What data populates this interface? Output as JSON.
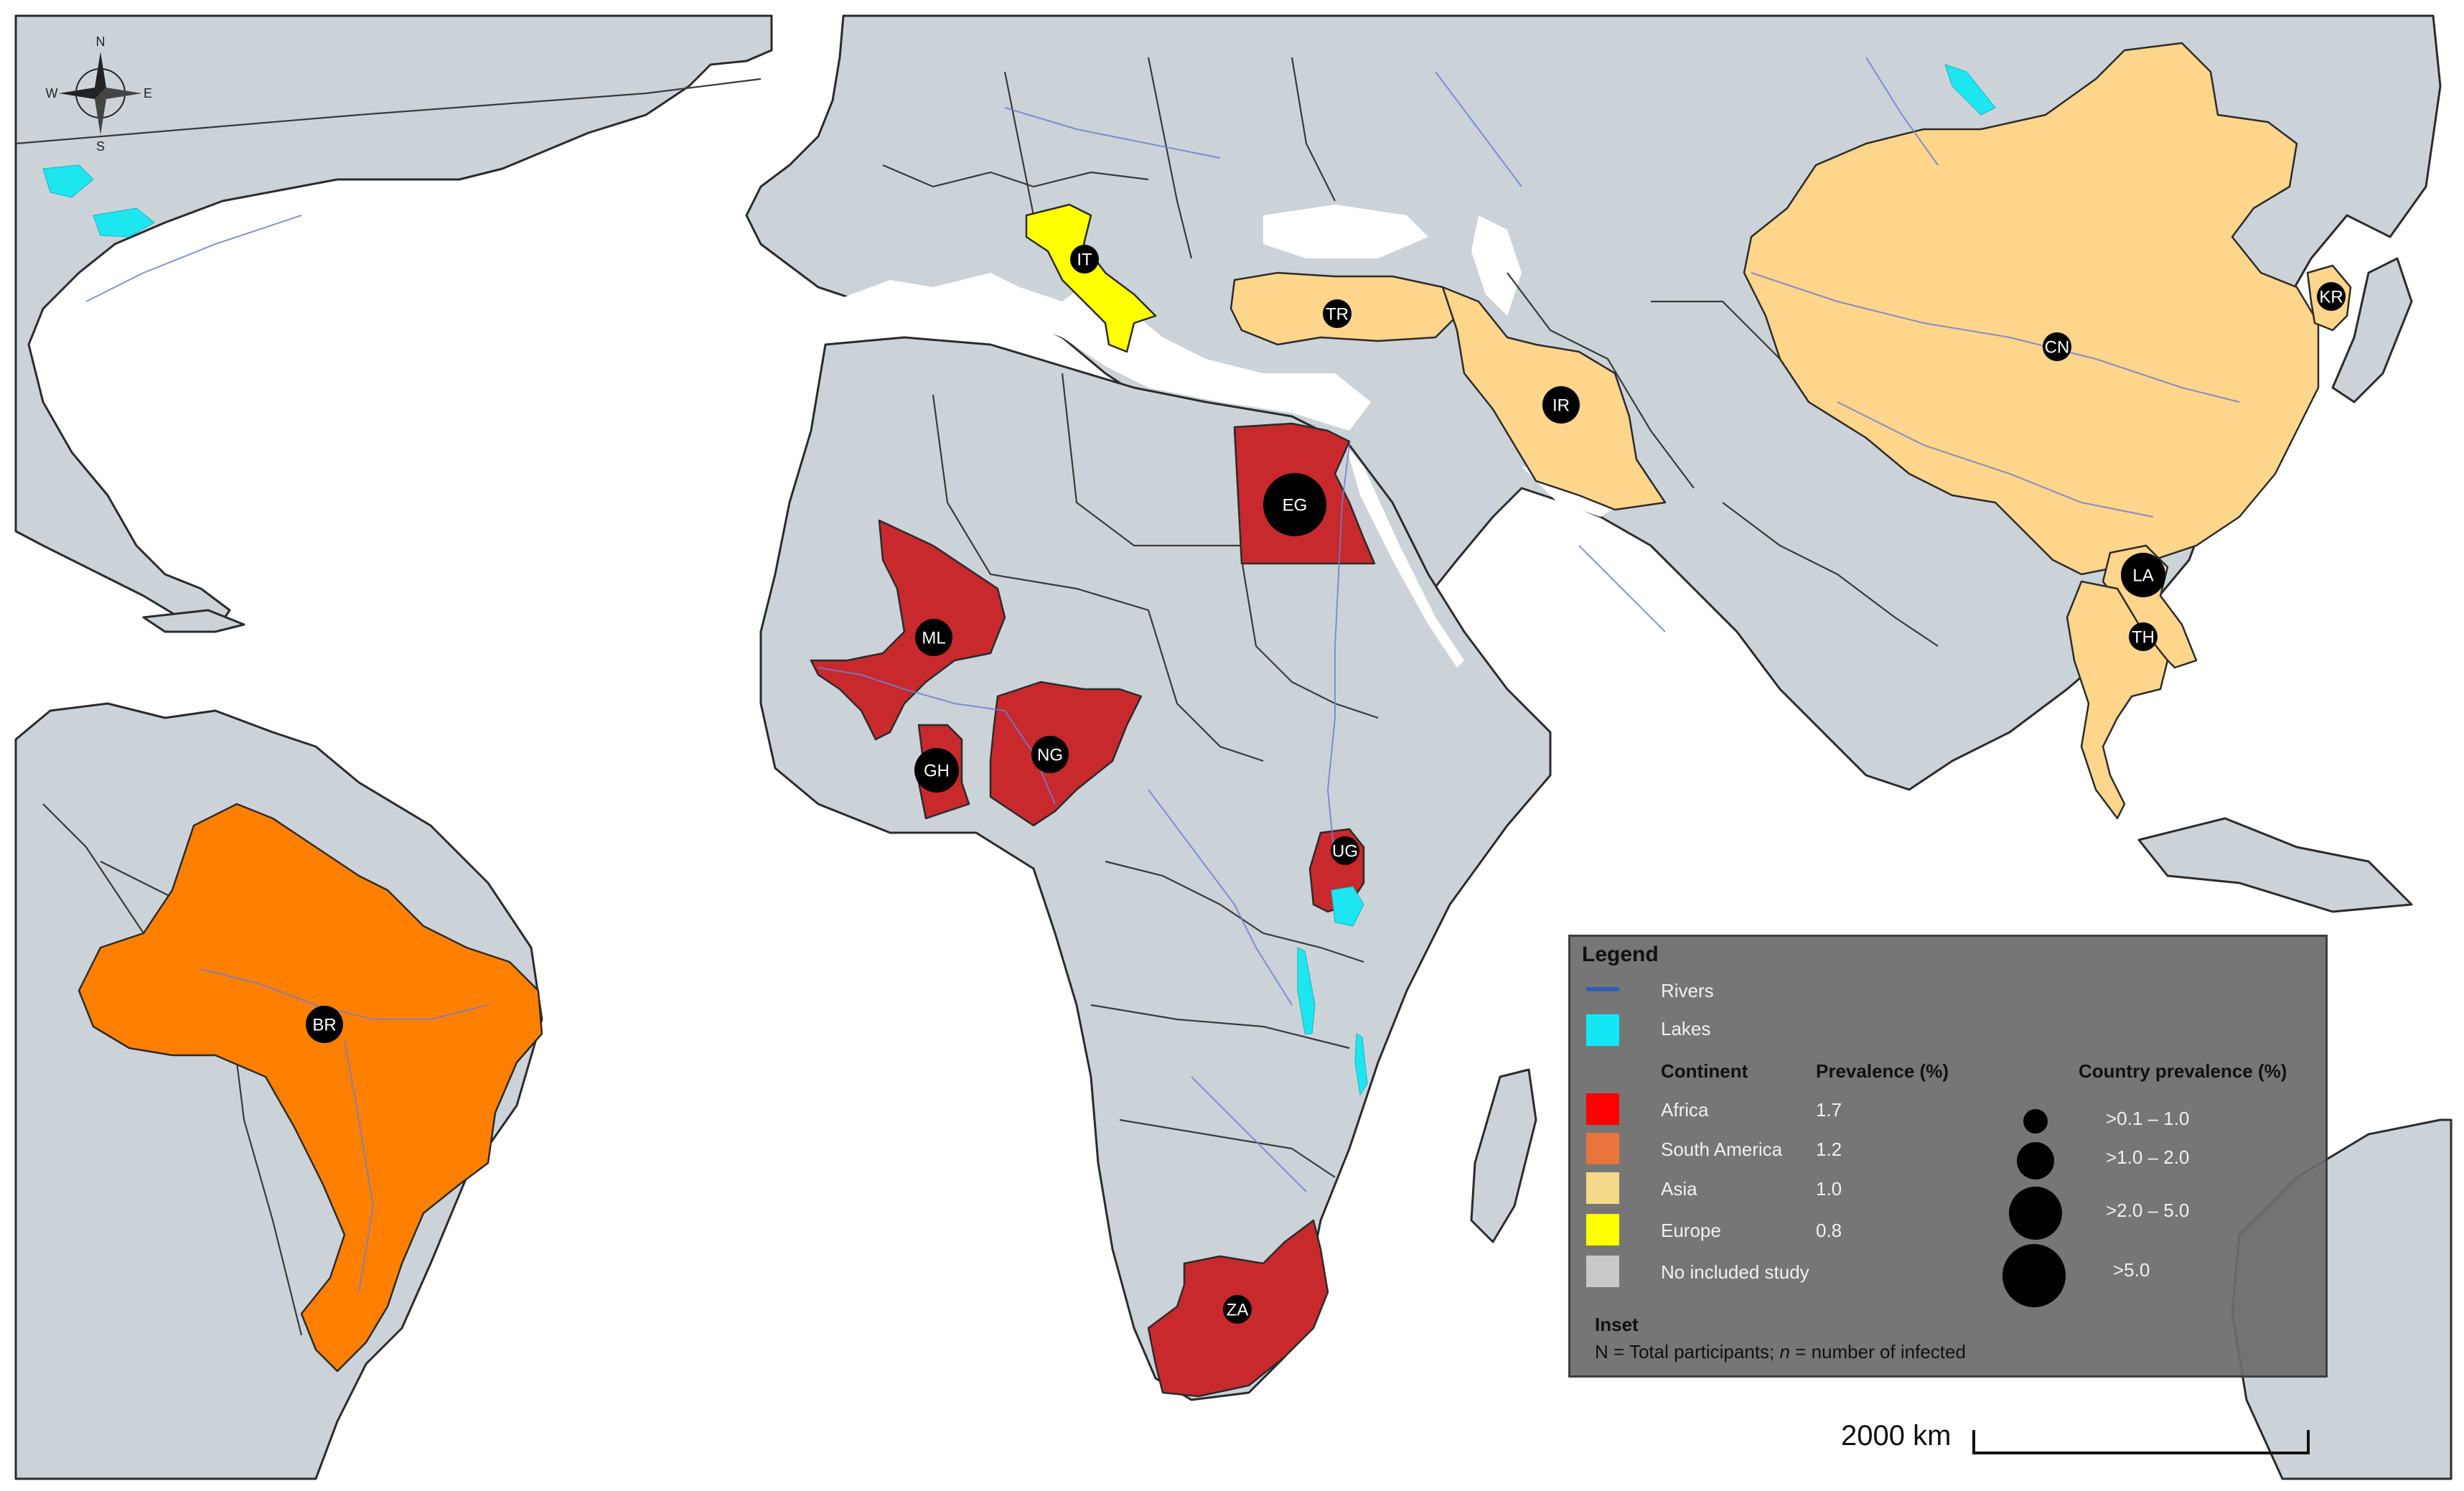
{
  "legend": {
    "title": "Legend",
    "rivers": "Rivers",
    "lakes": "Lakes",
    "col_continent": "Continent",
    "col_prevalence": "Prevalence (%)",
    "col_country": "Country prevalence (%)",
    "continents": [
      {
        "name": "Africa",
        "prevalence": "1.7",
        "color": "#ff0000"
      },
      {
        "name": "South America",
        "prevalence": "1.2",
        "color": "#e8743b"
      },
      {
        "name": "Asia",
        "prevalence": "1.0",
        "color": "#f4d98a"
      },
      {
        "name": "Europe",
        "prevalence": "0.8",
        "color": "#ffff00"
      },
      {
        "name": "No included study",
        "prevalence": "",
        "color": "#c8c8c8"
      }
    ],
    "size_classes": [
      ">0.1 – 1.0",
      ">1.0 – 2.0",
      ">2.0 – 5.0",
      ">5.0"
    ],
    "inset_title": "Inset",
    "inset_note_before": "N = Total participants; ",
    "inset_note_n": "n",
    "inset_note_after": " = number of infected"
  },
  "scale": {
    "label": "2000 km"
  },
  "compass": {
    "n": "N",
    "s": "S",
    "e": "E",
    "w": "W"
  },
  "countries": [
    {
      "code": "BR",
      "continent": "South America",
      "color": "#ff8000"
    },
    {
      "code": "IT",
      "continent": "Europe",
      "color": "#ffff00"
    },
    {
      "code": "TR",
      "continent": "Asia",
      "color": "#fdd58b"
    },
    {
      "code": "IR",
      "continent": "Asia",
      "color": "#fdd58b"
    },
    {
      "code": "CN",
      "continent": "Asia",
      "color": "#fdd58b"
    },
    {
      "code": "KR",
      "continent": "Asia",
      "color": "#fdd58b"
    },
    {
      "code": "LA",
      "continent": "Asia",
      "color": "#fdd58b"
    },
    {
      "code": "TH",
      "continent": "Asia",
      "color": "#fdd58b"
    },
    {
      "code": "EG",
      "continent": "Africa",
      "color": "#c8292c"
    },
    {
      "code": "ML",
      "continent": "Africa",
      "color": "#c8292c"
    },
    {
      "code": "GH",
      "continent": "Africa",
      "color": "#c8292c"
    },
    {
      "code": "NG",
      "continent": "Africa",
      "color": "#c8292c"
    },
    {
      "code": "UG",
      "continent": "Africa",
      "color": "#c8292c"
    },
    {
      "code": "ZA",
      "continent": "Africa",
      "color": "#c8292c"
    }
  ],
  "colors": {
    "ocean": "#ffffff",
    "land": "#ccd3d8",
    "river": "#6e7fd6",
    "lake": "#1ee6f0"
  }
}
